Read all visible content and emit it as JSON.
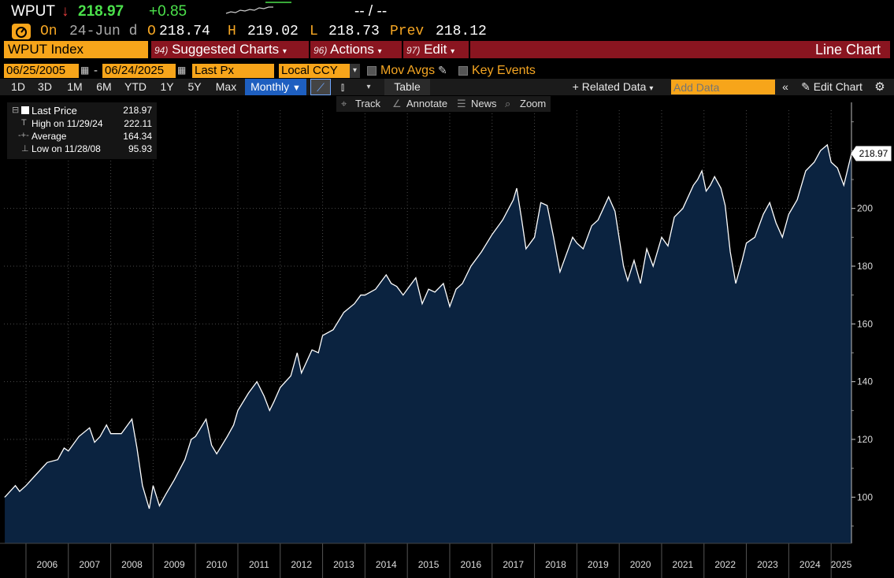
{
  "header": {
    "ticker": "WPUT",
    "arrow": "↓",
    "price": "218.97",
    "change": "+0.85",
    "bidask": "-- / --",
    "on_label": "On",
    "on_date": "24-Jun d",
    "open_label": "O",
    "open": "218.74",
    "high_label": "H",
    "high": "219.02",
    "low_label": "L",
    "low": "218.73",
    "prev_label": "Prev",
    "prev": "218.12"
  },
  "toolbar": {
    "security": "WPUT Index",
    "suggested_num": "94)",
    "suggested_label": "Suggested Charts",
    "actions_num": "96)",
    "actions_label": "Actions",
    "edit_num": "97)",
    "edit_label": "Edit",
    "chart_type": "Line Chart",
    "start_date": "06/25/2005",
    "date_sep": "-",
    "end_date": "06/24/2025",
    "field": "Last Px",
    "currency": "Local CCY",
    "mov_avgs": "Mov Avgs",
    "key_events": "Key Events",
    "ranges": [
      "1D",
      "3D",
      "1M",
      "6M",
      "YTD",
      "1Y",
      "5Y",
      "Max"
    ],
    "period": "Monthly",
    "table": "Table",
    "related": "+ Related Data",
    "add_data_placeholder": "Add Data",
    "edit_chart": "Edit Chart",
    "tools": [
      "Track",
      "Annotate",
      "News",
      "Zoom"
    ]
  },
  "legend": [
    {
      "label": "Last Price",
      "value": "218.97"
    },
    {
      "label": "High on 11/29/24",
      "value": "222.11"
    },
    {
      "label": "Average",
      "value": "164.34"
    },
    {
      "label": "Low on 11/28/08",
      "value": "95.93"
    }
  ],
  "colors": {
    "fill": "#0b2340",
    "line": "#ffffff",
    "accent": "#f7a51a",
    "red_bar": "#8a1520"
  },
  "chart_data": {
    "type": "area",
    "title": "WPUT Index",
    "xlabel": "",
    "ylabel": "",
    "x_range": [
      2005.48,
      2025.48
    ],
    "ylim": [
      84,
      234
    ],
    "yticks": [
      100,
      120,
      140,
      160,
      180,
      200
    ],
    "xticks": [
      "2006",
      "2007",
      "2008",
      "2009",
      "2010",
      "2011",
      "2012",
      "2013",
      "2014",
      "2015",
      "2016",
      "2017",
      "2018",
      "2019",
      "2020",
      "2021",
      "2022",
      "2023",
      "2024",
      "2025"
    ],
    "last_value_label": "218.97",
    "points": [
      [
        2005.5,
        100
      ],
      [
        2005.75,
        104
      ],
      [
        2005.85,
        102
      ],
      [
        2006.0,
        104
      ],
      [
        2006.25,
        108
      ],
      [
        2006.5,
        112
      ],
      [
        2006.75,
        113
      ],
      [
        2006.9,
        117
      ],
      [
        2007.0,
        116
      ],
      [
        2007.25,
        121
      ],
      [
        2007.5,
        124
      ],
      [
        2007.62,
        119
      ],
      [
        2007.75,
        121
      ],
      [
        2007.9,
        125
      ],
      [
        2008.0,
        122
      ],
      [
        2008.25,
        122
      ],
      [
        2008.5,
        127
      ],
      [
        2008.62,
        117
      ],
      [
        2008.75,
        104
      ],
      [
        2008.91,
        96
      ],
      [
        2009.0,
        104
      ],
      [
        2009.15,
        97
      ],
      [
        2009.3,
        101
      ],
      [
        2009.5,
        106
      ],
      [
        2009.75,
        113
      ],
      [
        2009.9,
        120
      ],
      [
        2010.0,
        121
      ],
      [
        2010.25,
        127
      ],
      [
        2010.38,
        118
      ],
      [
        2010.5,
        115
      ],
      [
        2010.75,
        121
      ],
      [
        2010.9,
        125
      ],
      [
        2011.0,
        130
      ],
      [
        2011.25,
        136
      ],
      [
        2011.45,
        140
      ],
      [
        2011.62,
        135
      ],
      [
        2011.75,
        130
      ],
      [
        2011.85,
        133
      ],
      [
        2012.0,
        138
      ],
      [
        2012.25,
        142
      ],
      [
        2012.4,
        150
      ],
      [
        2012.5,
        143
      ],
      [
        2012.75,
        151
      ],
      [
        2012.9,
        150
      ],
      [
        2013.0,
        156
      ],
      [
        2013.25,
        158
      ],
      [
        2013.5,
        164
      ],
      [
        2013.75,
        167
      ],
      [
        2013.9,
        170
      ],
      [
        2014.0,
        170
      ],
      [
        2014.25,
        172
      ],
      [
        2014.5,
        177
      ],
      [
        2014.62,
        174
      ],
      [
        2014.75,
        173
      ],
      [
        2014.9,
        170
      ],
      [
        2015.0,
        172
      ],
      [
        2015.2,
        176
      ],
      [
        2015.35,
        167
      ],
      [
        2015.5,
        172
      ],
      [
        2015.65,
        171
      ],
      [
        2015.85,
        174
      ],
      [
        2016.0,
        166
      ],
      [
        2016.15,
        172
      ],
      [
        2016.3,
        174
      ],
      [
        2016.5,
        180
      ],
      [
        2016.75,
        185
      ],
      [
        2017.0,
        191
      ],
      [
        2017.25,
        196
      ],
      [
        2017.5,
        203
      ],
      [
        2017.58,
        207
      ],
      [
        2017.7,
        196
      ],
      [
        2017.8,
        186
      ],
      [
        2018.0,
        190
      ],
      [
        2018.15,
        202
      ],
      [
        2018.3,
        201
      ],
      [
        2018.45,
        190
      ],
      [
        2018.6,
        178
      ],
      [
        2018.75,
        184
      ],
      [
        2018.9,
        190
      ],
      [
        2019.0,
        188
      ],
      [
        2019.15,
        186
      ],
      [
        2019.35,
        194
      ],
      [
        2019.5,
        196
      ],
      [
        2019.75,
        204
      ],
      [
        2019.9,
        199
      ],
      [
        2020.1,
        180
      ],
      [
        2020.2,
        175
      ],
      [
        2020.35,
        182
      ],
      [
        2020.5,
        174
      ],
      [
        2020.65,
        186
      ],
      [
        2020.8,
        180
      ],
      [
        2021.0,
        190
      ],
      [
        2021.15,
        187
      ],
      [
        2021.3,
        197
      ],
      [
        2021.5,
        200
      ],
      [
        2021.75,
        208
      ],
      [
        2021.85,
        210
      ],
      [
        2021.95,
        213
      ],
      [
        2022.05,
        206
      ],
      [
        2022.15,
        208
      ],
      [
        2022.25,
        211
      ],
      [
        2022.4,
        207
      ],
      [
        2022.5,
        201
      ],
      [
        2022.62,
        185
      ],
      [
        2022.75,
        174
      ],
      [
        2022.9,
        182
      ],
      [
        2023.0,
        188
      ],
      [
        2023.2,
        190
      ],
      [
        2023.4,
        198
      ],
      [
        2023.55,
        202
      ],
      [
        2023.7,
        195
      ],
      [
        2023.85,
        190
      ],
      [
        2024.0,
        198
      ],
      [
        2024.2,
        203
      ],
      [
        2024.4,
        213
      ],
      [
        2024.6,
        216
      ],
      [
        2024.75,
        220
      ],
      [
        2024.91,
        222
      ],
      [
        2025.0,
        216
      ],
      [
        2025.15,
        214
      ],
      [
        2025.3,
        208
      ],
      [
        2025.48,
        219
      ]
    ]
  }
}
